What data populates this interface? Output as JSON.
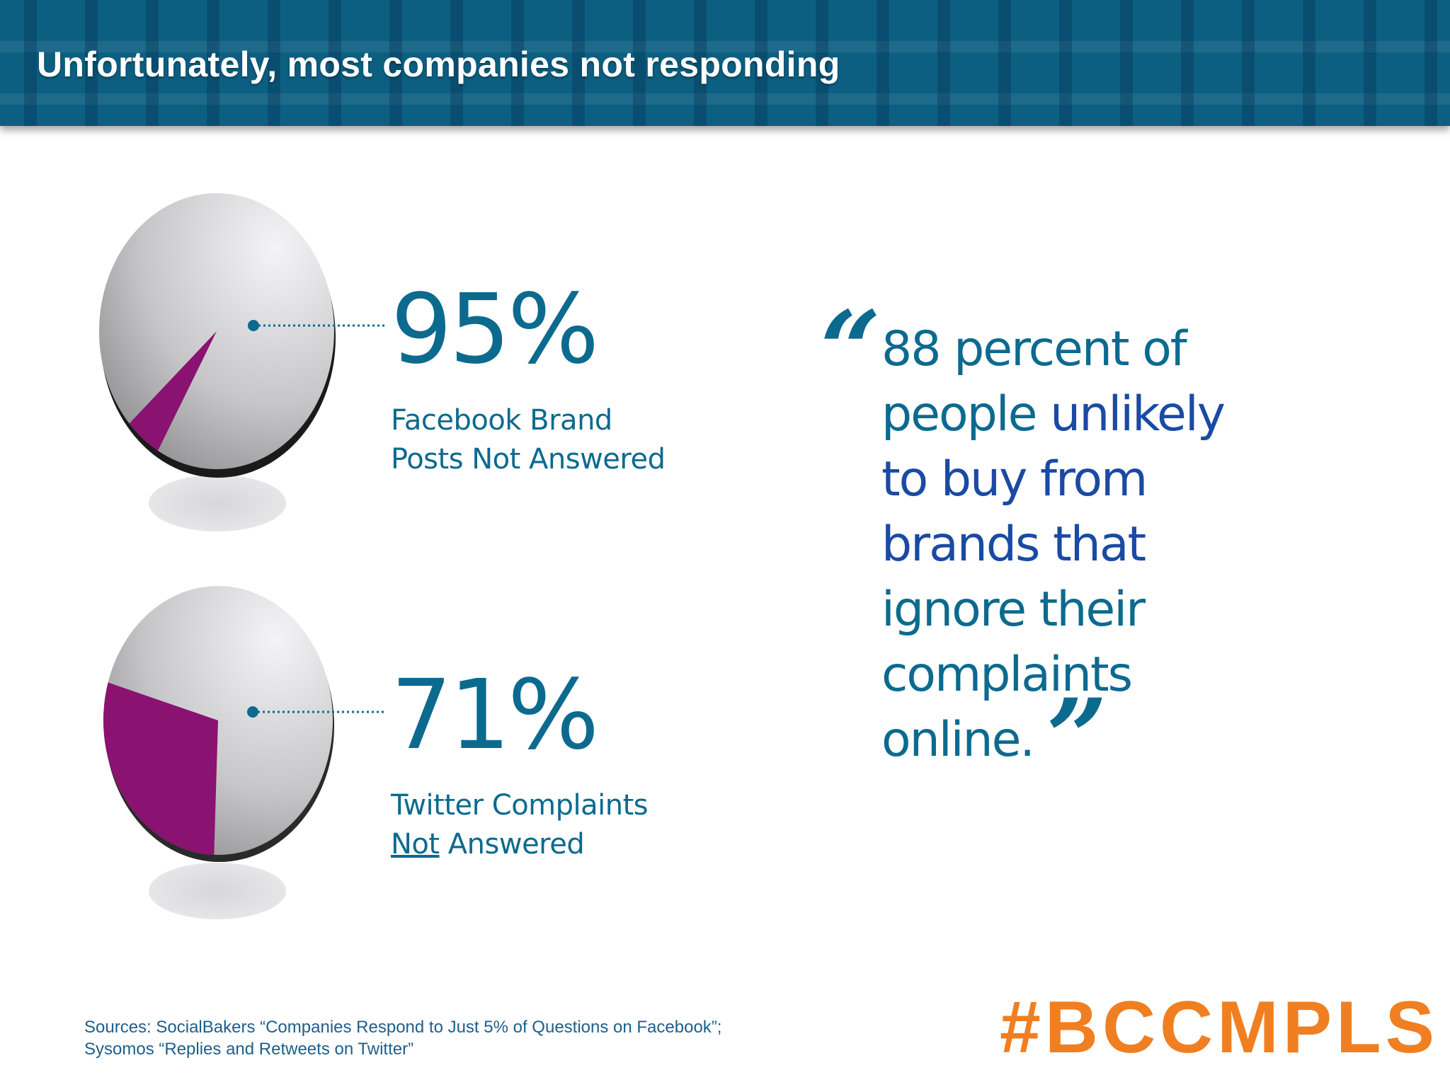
{
  "header": {
    "title": "Unfortunately, most companies not responding"
  },
  "chart_data": [
    {
      "type": "pie",
      "title": "",
      "categories": [
        "Not Answered",
        "Answered"
      ],
      "values": [
        95,
        5
      ],
      "label": "95%",
      "caption_lines": [
        "Facebook Brand",
        "Posts Not Answered"
      ],
      "colors": {
        "unanswered": "#c9c9cb",
        "answered": "#8a1270"
      }
    },
    {
      "type": "pie",
      "title": "",
      "categories": [
        "Not Answered",
        "Answered"
      ],
      "values": [
        71,
        29
      ],
      "label": "71%",
      "caption_lines": [
        "Twitter Complaints",
        "Answered"
      ],
      "caption_underlined_word": "Not",
      "colors": {
        "unanswered": "#c9c9cb",
        "answered": "#8a1270"
      }
    }
  ],
  "quote": {
    "lines": [
      "88 percent of",
      "people",
      "unlikely",
      "to buy from",
      "brands that",
      "ignore their",
      "complaints",
      "online."
    ],
    "open_mark": "“",
    "close_mark": "”"
  },
  "sources": {
    "line1": "Sources: SocialBakers “Companies Respond to Just 5% of Questions on Facebook”;",
    "line2": "Sysomos “Replies and Retweets on Twitter”"
  },
  "hashtag": "#BCCMPLS",
  "colors": {
    "header_bg": "#0d5f82",
    "accent_text": "#0c6a8f",
    "emphasis_text": "#1a4aa3",
    "hashtag": "#f07f22",
    "slice": "#8a1270"
  }
}
